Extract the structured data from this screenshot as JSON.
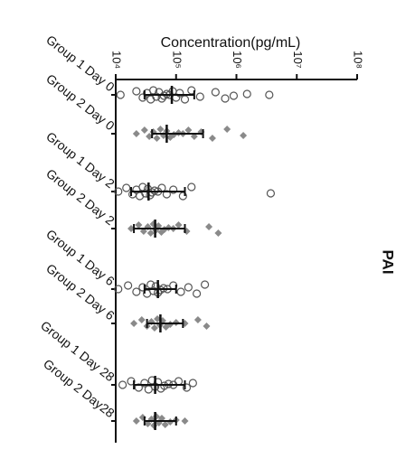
{
  "chart_data": {
    "type": "dotplot",
    "title": "Concentration(pg/mL)",
    "side_label": "PAI",
    "categories": [
      "Group 1 Day 0",
      "Group 2 Day 0",
      "Group 1 Day 2",
      "Group 2 Day 2",
      "Group 1 Day 6",
      "Group 2 Day 6",
      "Group 1 Day 28",
      "Group 2 Day28"
    ],
    "values": [
      [
        12000,
        22000,
        28000,
        33000,
        38000,
        42000,
        47000,
        52000,
        58000,
        63000,
        70000,
        78000,
        88000,
        100000,
        115000,
        140000,
        180000,
        250000,
        450000,
        650000,
        900000,
        1500000,
        3500000
      ],
      [
        22000,
        30000,
        36000,
        42000,
        48000,
        55000,
        62000,
        70000,
        80000,
        92000,
        110000,
        130000,
        160000,
        200000,
        260000,
        400000,
        700000,
        1300000
      ],
      [
        11000,
        15000,
        19000,
        22000,
        25000,
        28000,
        31000,
        34000,
        37000,
        40000,
        44000,
        50000,
        58000,
        70000,
        90000,
        130000,
        180000,
        3700000
      ],
      [
        18000,
        24000,
        29000,
        34000,
        38000,
        42000,
        46000,
        51000,
        57000,
        64000,
        75000,
        90000,
        110000,
        150000,
        350000,
        500000
      ],
      [
        11000,
        16000,
        22000,
        28000,
        33000,
        38000,
        42000,
        46000,
        50000,
        55000,
        62000,
        72000,
        90000,
        120000,
        160000,
        220000,
        300000
      ],
      [
        20000,
        27000,
        33000,
        39000,
        44000,
        49000,
        54000,
        60000,
        68000,
        80000,
        100000,
        140000,
        230000,
        320000
      ],
      [
        13000,
        18000,
        24000,
        30000,
        35000,
        40000,
        45000,
        50000,
        56000,
        64000,
        75000,
        90000,
        110000,
        150000,
        190000
      ],
      [
        22000,
        28000,
        34000,
        39000,
        43000,
        47000,
        52000,
        58000,
        66000,
        80000,
        100000,
        140000
      ]
    ],
    "medians": [
      85000,
      70000,
      35000,
      45000,
      50000,
      55000,
      45000,
      45000
    ],
    "lows": [
      30000,
      40000,
      18000,
      20000,
      30000,
      33000,
      20000,
      30000
    ],
    "highs": [
      200000,
      280000,
      140000,
      140000,
      100000,
      130000,
      140000,
      100000
    ],
    "xlim": [
      10000,
      100000000
    ],
    "log_x": true,
    "xticks": [
      {
        "value": 10000,
        "label": "10⁴"
      },
      {
        "value": 100000,
        "label": "10⁵"
      },
      {
        "value": 1000000,
        "label": "10⁶"
      },
      {
        "value": 10000000,
        "label": "10⁷"
      },
      {
        "value": 100000000,
        "label": "10⁸"
      }
    ],
    "styles": [
      {
        "marker": "circle",
        "color": "#555555"
      },
      {
        "marker": "diamond",
        "color": "#8a8a8a"
      }
    ]
  }
}
